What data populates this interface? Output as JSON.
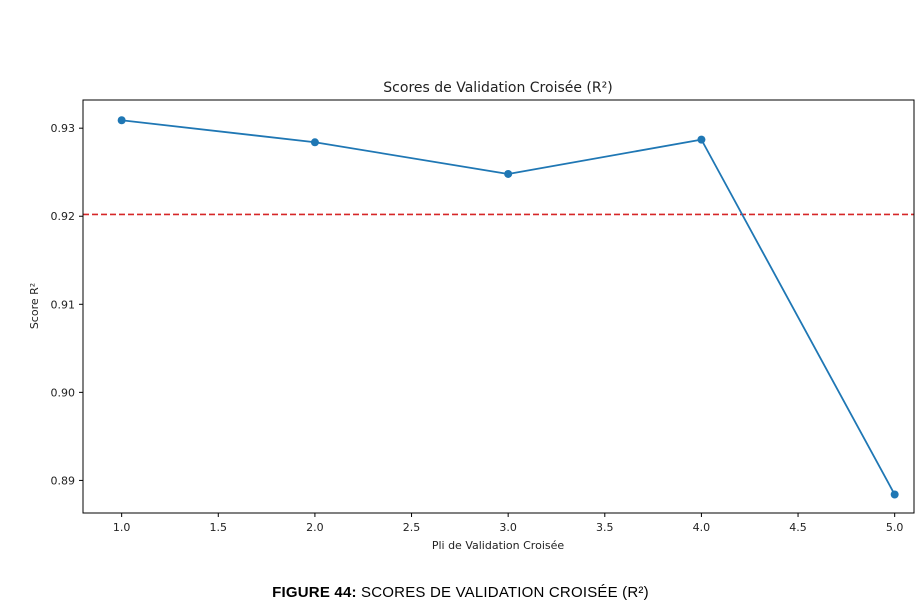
{
  "chart_data": {
    "type": "line",
    "title": "Scores de Validation Croisée (R²)",
    "xlabel": "Pli de Validation Croisée",
    "ylabel": "Score R²",
    "xlim": [
      0.8,
      5.1
    ],
    "ylim": [
      0.8863,
      0.9332
    ],
    "xticks": [
      1.0,
      1.5,
      2.0,
      2.5,
      3.0,
      3.5,
      4.0,
      4.5,
      5.0
    ],
    "xtick_labels": [
      "1.0",
      "1.5",
      "2.0",
      "2.5",
      "3.0",
      "3.5",
      "4.0",
      "4.5",
      "5.0"
    ],
    "yticks": [
      0.89,
      0.9,
      0.91,
      0.92,
      0.93
    ],
    "ytick_labels": [
      "0.89",
      "0.90",
      "0.91",
      "0.92",
      "0.93"
    ],
    "grid": false,
    "series": [
      {
        "x": [
          1,
          2,
          3,
          4,
          5
        ],
        "values": [
          0.9309,
          0.9284,
          0.9248,
          0.9287,
          0.8884
        ],
        "color": "#1f77b4",
        "marker": "circle"
      }
    ],
    "reference_line": {
      "y": 0.9202,
      "color": "#d62728",
      "style": "dashed"
    }
  },
  "caption": {
    "label": "FIGURE 44:",
    "text": " SCORES DE VALIDATION CROISÉE (R²)"
  }
}
